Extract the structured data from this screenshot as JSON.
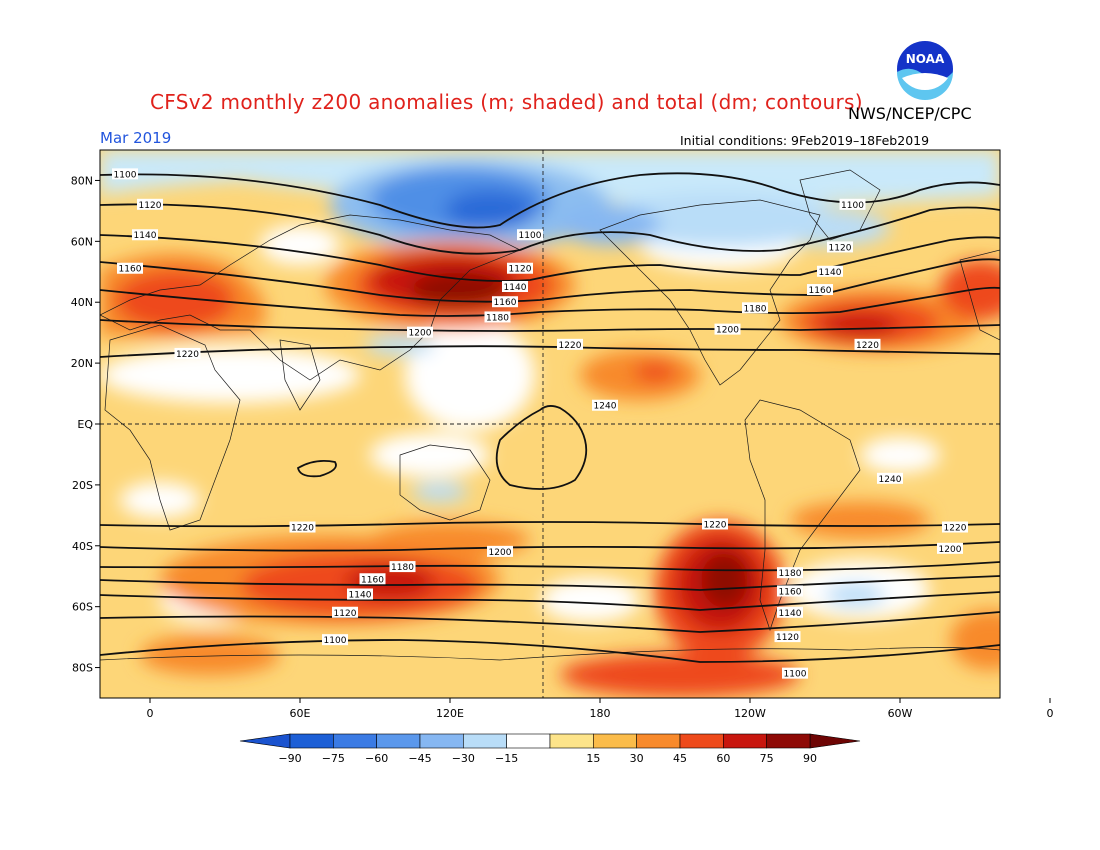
{
  "header": {
    "title": "CFSv2 monthly z200 anomalies (m; shaded) and total (dm; contours)",
    "org": "NWS/NCEP/CPC",
    "month": "Mar 2019",
    "initial_conditions": "Initial conditions: 9Feb2019–18Feb2019",
    "logo_text": "NOAA"
  },
  "axes": {
    "lat_labels": [
      "80N",
      "60N",
      "40N",
      "20N",
      "EQ",
      "20S",
      "40S",
      "60S",
      "80S"
    ],
    "lat_values": [
      80,
      60,
      40,
      20,
      0,
      -20,
      -40,
      -60,
      -80
    ],
    "lon_labels": [
      "0",
      "60E",
      "120E",
      "180",
      "120W",
      "60W",
      "0"
    ]
  },
  "colorbar": {
    "labels": [
      "−90",
      "−75",
      "−60",
      "−45",
      "−30",
      "−15",
      "15",
      "30",
      "45",
      "60",
      "75",
      "90"
    ],
    "colors": [
      "#1d5fd6",
      "#3b7be4",
      "#5b98ec",
      "#86b7f2",
      "#b9ddf8",
      "#ffffff",
      "#fde48a",
      "#fbbc4a",
      "#f88a2c",
      "#ee4a1b",
      "#c8160e",
      "#8e0a06"
    ]
  },
  "contours": {
    "levels_dm": [
      1100,
      1120,
      1140,
      1160,
      1180,
      1200,
      1220,
      1240
    ],
    "labels": [
      {
        "text": "1100",
        "lon": -10,
        "lat": 82
      },
      {
        "text": "1120",
        "lon": 0,
        "lat": 72
      },
      {
        "text": "1140",
        "lon": -2,
        "lat": 62
      },
      {
        "text": "1160",
        "lon": -8,
        "lat": 51
      },
      {
        "text": "1100",
        "lon": 152,
        "lat": 62
      },
      {
        "text": "1120",
        "lon": 148,
        "lat": 51
      },
      {
        "text": "1140",
        "lon": 146,
        "lat": 45
      },
      {
        "text": "1160",
        "lon": 142,
        "lat": 40
      },
      {
        "text": "1180",
        "lon": 139,
        "lat": 35
      },
      {
        "text": "1200",
        "lon": 108,
        "lat": 30
      },
      {
        "text": "1220",
        "lon": 15,
        "lat": 23
      },
      {
        "text": "1220",
        "lon": 168,
        "lat": 26
      },
      {
        "text": "1240",
        "lon": 182,
        "lat": 6
      },
      {
        "text": "1100",
        "lon": 281,
        "lat": 72
      },
      {
        "text": "1120",
        "lon": 276,
        "lat": 58
      },
      {
        "text": "1140",
        "lon": 272,
        "lat": 50
      },
      {
        "text": "1160",
        "lon": 268,
        "lat": 44
      },
      {
        "text": "1180",
        "lon": 242,
        "lat": 38
      },
      {
        "text": "1200",
        "lon": 231,
        "lat": 31
      },
      {
        "text": "1220",
        "lon": 287,
        "lat": 26
      },
      {
        "text": "1240",
        "lon": 296,
        "lat": -18
      },
      {
        "text": "1220",
        "lon": 61,
        "lat": -34
      },
      {
        "text": "1200",
        "lon": 140,
        "lat": -42
      },
      {
        "text": "1180",
        "lon": 101,
        "lat": -47
      },
      {
        "text": "1160",
        "lon": 89,
        "lat": -51
      },
      {
        "text": "1140",
        "lon": 84,
        "lat": -56
      },
      {
        "text": "1120",
        "lon": 78,
        "lat": -62
      },
      {
        "text": "1100",
        "lon": 74,
        "lat": -71
      },
      {
        "text": "1220",
        "lon": 226,
        "lat": -33
      },
      {
        "text": "1180",
        "lon": 256,
        "lat": -49
      },
      {
        "text": "1160",
        "lon": 256,
        "lat": -55
      },
      {
        "text": "1140",
        "lon": 256,
        "lat": -62
      },
      {
        "text": "1120",
        "lon": 255,
        "lat": -70
      },
      {
        "text": "1100",
        "lon": 258,
        "lat": -82
      },
      {
        "text": "1220",
        "lon": 322,
        "lat": -34
      },
      {
        "text": "1200",
        "lon": 320,
        "lat": -41
      }
    ]
  }
}
